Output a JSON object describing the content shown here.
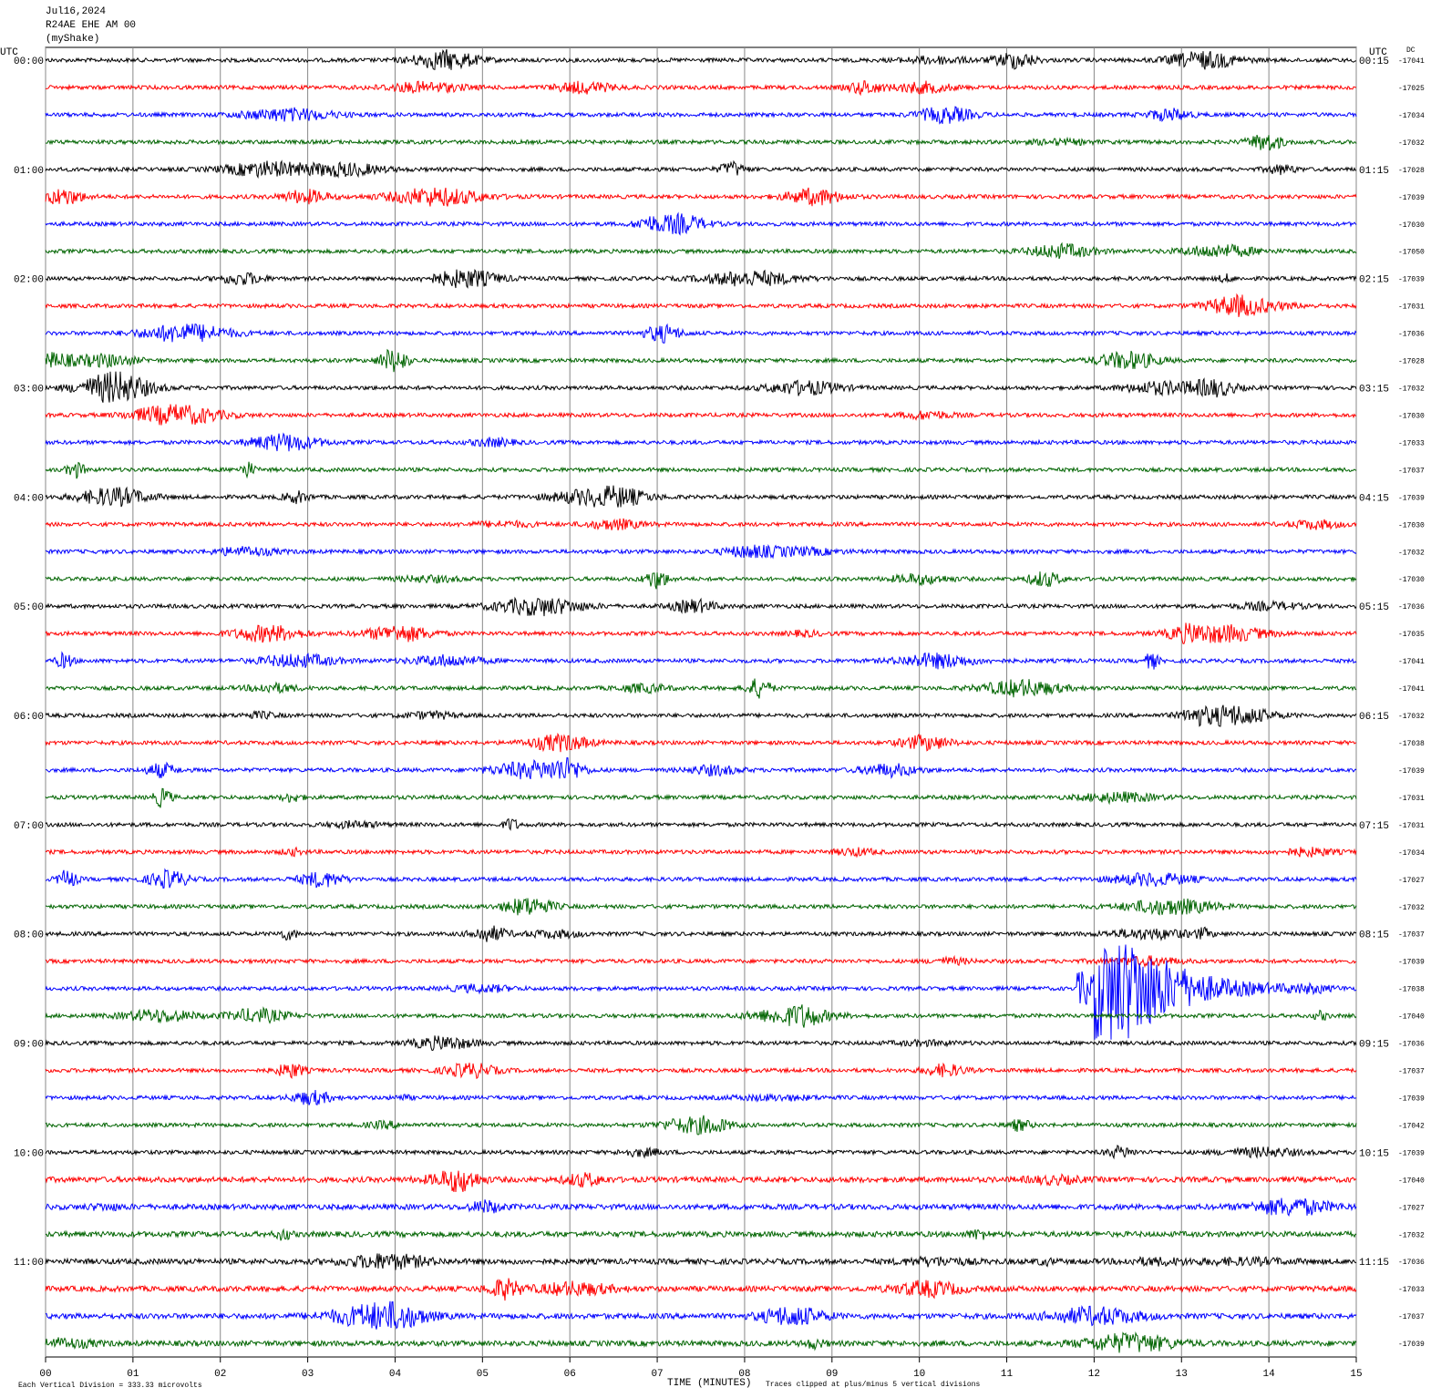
{
  "header": {
    "date": "Jul16,2024",
    "station": "R24AE EHE AM 00",
    "network": "(myShake)"
  },
  "left_axis_title": "UTC",
  "right_axis_title": "UTC",
  "dc_title": "DC",
  "left_times": [
    "00:00",
    "01:00",
    "02:00",
    "03:00",
    "04:00",
    "05:00",
    "06:00",
    "07:00",
    "08:00",
    "09:00",
    "10:00",
    "11:00"
  ],
  "right_times": [
    "00:15",
    "01:15",
    "02:15",
    "03:15",
    "04:15",
    "05:15",
    "06:15",
    "07:15",
    "08:15",
    "09:15",
    "10:15",
    "11:15"
  ],
  "dc_values": [
    "-17041",
    "-17025",
    "-17034",
    "-17032",
    "-17028",
    "-17039",
    "-17030",
    "-17050",
    "-17039",
    "-17031",
    "-17036",
    "-17028",
    "-17032",
    "-17030",
    "-17033",
    "-17037",
    "-17039",
    "-17030",
    "-17032",
    "-17030",
    "-17036",
    "-17035",
    "-17041",
    "-17041",
    "-17032",
    "-17038",
    "-17039",
    "-17031",
    "-17031",
    "-17034",
    "-17027",
    "-17032",
    "-17037",
    "-17039",
    "-17038",
    "-17040",
    "-17036",
    "-17037",
    "-17039",
    "-17042",
    "-17039",
    "-17040",
    "-17027",
    "-17032",
    "-17036",
    "-17033",
    "-17037",
    "-17039"
  ],
  "x_ticks": [
    "00",
    "01",
    "02",
    "03",
    "04",
    "05",
    "06",
    "07",
    "08",
    "09",
    "10",
    "11",
    "12",
    "13",
    "14",
    "15"
  ],
  "footer": {
    "scale": "Each Vertical Division =  333.33 microvolts",
    "x_title": "TIME (MINUTES)",
    "clip_note": "Traces clipped at plus/minus 5 vertical divisions"
  }
}
